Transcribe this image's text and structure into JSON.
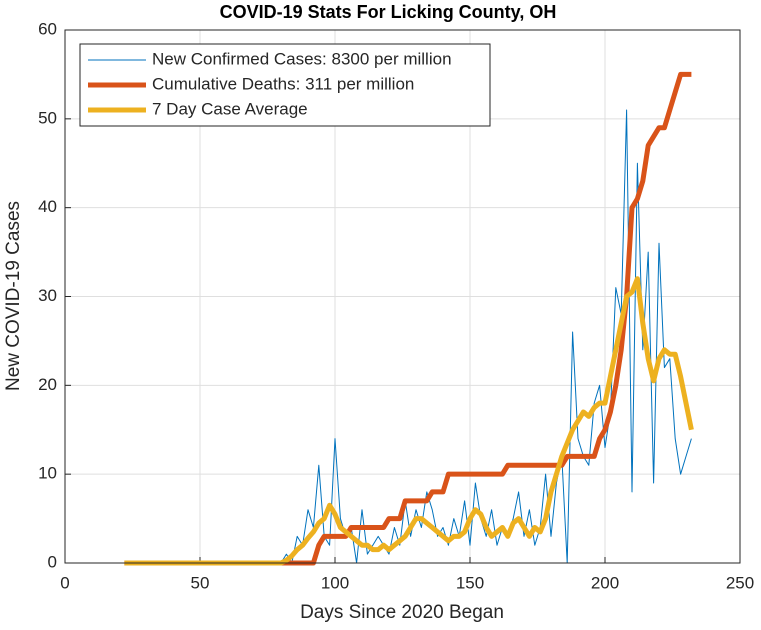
{
  "chart_data": {
    "type": "line",
    "title": "COVID-19 Stats For Licking County, OH",
    "x_label": "Days Since 2020 Began",
    "y_label": "New COVID-19 Cases",
    "xlim": [
      0,
      250
    ],
    "xticks": [
      0,
      50,
      100,
      150,
      200,
      250
    ],
    "ylim": [
      0,
      60
    ],
    "yticks": [
      0,
      10,
      20,
      30,
      40,
      50,
      60
    ],
    "grid": true,
    "legend": "top-left",
    "x": [
      22,
      24,
      26,
      28,
      30,
      32,
      34,
      36,
      38,
      40,
      42,
      44,
      46,
      48,
      50,
      52,
      54,
      56,
      58,
      60,
      62,
      64,
      66,
      68,
      70,
      72,
      74,
      76,
      78,
      80,
      82,
      84,
      86,
      88,
      90,
      92,
      94,
      96,
      98,
      100,
      102,
      104,
      106,
      108,
      110,
      112,
      114,
      116,
      118,
      120,
      122,
      124,
      126,
      128,
      130,
      132,
      134,
      136,
      138,
      140,
      142,
      144,
      146,
      148,
      150,
      152,
      154,
      156,
      158,
      160,
      162,
      164,
      166,
      168,
      170,
      172,
      174,
      176,
      178,
      180,
      182,
      184,
      186,
      188,
      190,
      192,
      194,
      196,
      198,
      200,
      202,
      204,
      206,
      208,
      210,
      212,
      214,
      216,
      218,
      220,
      222,
      224,
      226,
      228,
      230,
      232
    ],
    "series": [
      {
        "name": "New Confirmed Cases: 8300 per million",
        "color": "#0072bd",
        "width": 1,
        "values": [
          0,
          0,
          0,
          0,
          0,
          0,
          0,
          0,
          0,
          0,
          0,
          0,
          0,
          0,
          0,
          0,
          0,
          0,
          0,
          0,
          0,
          0,
          0,
          0,
          0,
          0,
          0,
          0,
          0,
          0,
          1,
          0,
          3,
          2,
          6,
          4,
          11,
          3,
          2,
          14,
          5,
          3,
          4,
          0,
          6,
          1,
          2,
          3,
          2,
          1,
          4,
          2,
          7,
          3,
          6,
          4,
          8,
          6,
          3,
          4,
          2,
          5,
          3,
          7,
          2,
          9,
          5,
          3,
          6,
          2,
          4,
          3,
          5,
          8,
          3,
          6,
          2,
          4,
          10,
          3,
          9,
          12,
          0,
          26,
          14,
          12,
          11,
          18,
          20,
          13,
          17,
          31,
          28,
          51,
          8,
          45,
          24,
          35,
          9,
          36,
          22,
          23,
          14,
          10,
          12,
          14
        ]
      },
      {
        "name": "Cumulative Deaths: 311 per million",
        "color": "#d95319",
        "width": 5,
        "values": [
          0,
          0,
          0,
          0,
          0,
          0,
          0,
          0,
          0,
          0,
          0,
          0,
          0,
          0,
          0,
          0,
          0,
          0,
          0,
          0,
          0,
          0,
          0,
          0,
          0,
          0,
          0,
          0,
          0,
          0,
          0,
          0,
          0,
          0,
          0,
          0,
          2,
          3,
          3,
          3,
          3,
          3,
          4,
          4,
          4,
          4,
          4,
          4,
          4,
          5,
          5,
          5,
          7,
          7,
          7,
          7,
          7,
          8,
          8,
          8,
          10,
          10,
          10,
          10,
          10,
          10,
          10,
          10,
          10,
          10,
          10,
          11,
          11,
          11,
          11,
          11,
          11,
          11,
          11,
          11,
          11,
          11,
          12,
          12,
          12,
          12,
          12,
          12,
          14,
          15,
          17,
          20,
          24,
          30,
          40,
          41,
          43,
          47,
          48,
          49,
          49,
          51,
          53,
          55,
          55,
          55
        ]
      },
      {
        "name": "7 Day Case Average",
        "color": "#edb120",
        "width": 5,
        "values": [
          0,
          0,
          0,
          0,
          0,
          0,
          0,
          0,
          0,
          0,
          0,
          0,
          0,
          0,
          0,
          0,
          0,
          0,
          0,
          0,
          0,
          0,
          0,
          0,
          0,
          0,
          0,
          0,
          0,
          0,
          0.3,
          0.8,
          1.5,
          2,
          2.8,
          3.5,
          4.5,
          5,
          6.5,
          5.5,
          4,
          3.5,
          3,
          2.5,
          2,
          2,
          1.5,
          1.5,
          2,
          1.5,
          2,
          2.5,
          3,
          4,
          5,
          5,
          4.5,
          4,
          3.5,
          3,
          2.5,
          3,
          3,
          3.5,
          5,
          6,
          5.5,
          4,
          3,
          3.5,
          4,
          3,
          4.5,
          5,
          4,
          3,
          4,
          3.5,
          5,
          8,
          10,
          12,
          13.5,
          15,
          16,
          17,
          16.5,
          17.5,
          18,
          18,
          21,
          24,
          27,
          30,
          30.5,
          32,
          27,
          23,
          20.5,
          23,
          24,
          23.5,
          23.5,
          21,
          18,
          15
        ]
      }
    ]
  }
}
